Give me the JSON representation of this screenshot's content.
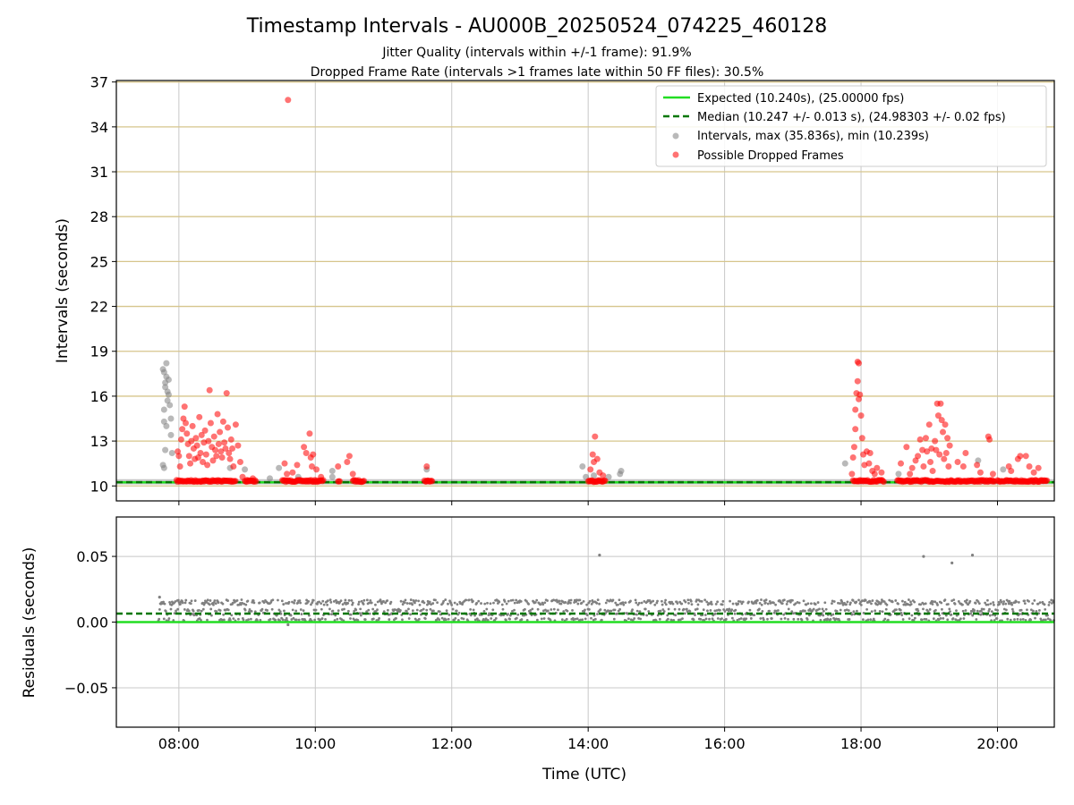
{
  "chart_data": [
    {
      "type": "scatter",
      "title": "Timestamp Intervals - AU000B_20250524_074225_460128",
      "subtitle_lines": [
        "Jitter Quality (intervals within +/-1 frame): 91.9%",
        "Dropped Frame Rate (intervals >1 frames late within 50 FF files): 30.5%"
      ],
      "ylabel": "Intervals (seconds)",
      "ylim": [
        9.0,
        37.1
      ],
      "yticks": [
        10,
        13,
        16,
        19,
        22,
        25,
        28,
        31,
        34,
        37
      ],
      "xlim": [
        "07:05",
        "20:50"
      ],
      "xticks": [
        "08:00",
        "10:00",
        "12:00",
        "14:00",
        "16:00",
        "18:00",
        "20:00"
      ],
      "legend_position": "top-right",
      "grid": true,
      "reference_lines": [
        {
          "name": "Expected (10.240s), (25.00000 fps)",
          "y": 10.24,
          "style": "solid",
          "color": "#22dd22"
        },
        {
          "name": "Median (10.247 +/- 0.013 s), (24.98303 +/- 0.02 fps)",
          "y": 10.247,
          "style": "dashed",
          "color": "#007700"
        }
      ],
      "series": [
        {
          "name": "Intervals, max (35.836s), min (10.239s)",
          "color": "#808080",
          "points": [
            [
              "07:46",
              17.8
            ],
            [
              "07:47",
              17.6
            ],
            [
              "07:48",
              16.6
            ],
            [
              "07:48",
              16.9
            ],
            [
              "07:49",
              18.2
            ],
            [
              "07:49",
              17.3
            ],
            [
              "07:50",
              16.3
            ],
            [
              "07:51",
              17.1
            ],
            [
              "07:47",
              15.1
            ],
            [
              "07:47",
              14.3
            ],
            [
              "07:49",
              14.0
            ],
            [
              "07:50",
              15.7
            ],
            [
              "07:51",
              16.1
            ],
            [
              "07:52",
              15.4
            ],
            [
              "07:53",
              13.4
            ],
            [
              "07:53",
              14.5
            ],
            [
              "07:54",
              12.2
            ],
            [
              "07:46",
              11.4
            ],
            [
              "07:47",
              11.2
            ],
            [
              "07:48",
              12.4
            ],
            [
              "08:45",
              11.2
            ],
            [
              "08:58",
              11.1
            ],
            [
              "09:20",
              10.5
            ],
            [
              "09:28",
              11.2
            ],
            [
              "09:45",
              10.6
            ],
            [
              "10:15",
              11.0
            ],
            [
              "10:15",
              10.6
            ],
            [
              "11:38",
              11.1
            ],
            [
              "13:55",
              11.3
            ],
            [
              "13:58",
              10.6
            ],
            [
              "14:05",
              10.7
            ],
            [
              "14:18",
              10.6
            ],
            [
              "14:28",
              10.8
            ],
            [
              "14:29",
              11.0
            ],
            [
              "17:46",
              11.5
            ],
            [
              "18:33",
              10.8
            ],
            [
              "19:43",
              11.7
            ],
            [
              "20:05",
              11.1
            ]
          ]
        },
        {
          "name": "Possible Dropped Frames",
          "color": "#ff0000",
          "points": [
            [
              "07:59",
              12.3
            ],
            [
              "08:00",
              12.0
            ],
            [
              "08:01",
              11.3
            ],
            [
              "08:02",
              13.1
            ],
            [
              "08:03",
              13.8
            ],
            [
              "08:04",
              14.5
            ],
            [
              "08:05",
              15.3
            ],
            [
              "08:06",
              14.2
            ],
            [
              "08:07",
              13.5
            ],
            [
              "08:08",
              12.8
            ],
            [
              "08:09",
              12.0
            ],
            [
              "08:10",
              11.5
            ],
            [
              "08:11",
              13.0
            ],
            [
              "08:12",
              14.0
            ],
            [
              "08:13",
              12.5
            ],
            [
              "08:14",
              11.8
            ],
            [
              "08:15",
              13.2
            ],
            [
              "08:16",
              12.7
            ],
            [
              "08:17",
              11.9
            ],
            [
              "08:18",
              14.6
            ],
            [
              "08:19",
              12.2
            ],
            [
              "08:20",
              13.4
            ],
            [
              "08:21",
              11.6
            ],
            [
              "08:22",
              12.9
            ],
            [
              "08:23",
              13.7
            ],
            [
              "08:24",
              12.1
            ],
            [
              "08:25",
              11.4
            ],
            [
              "08:26",
              13.0
            ],
            [
              "08:27",
              16.4
            ],
            [
              "08:28",
              14.2
            ],
            [
              "08:29",
              12.6
            ],
            [
              "08:30",
              11.7
            ],
            [
              "08:31",
              13.3
            ],
            [
              "08:32",
              12.4
            ],
            [
              "08:33",
              12.0
            ],
            [
              "08:34",
              14.8
            ],
            [
              "08:35",
              12.8
            ],
            [
              "08:36",
              13.6
            ],
            [
              "08:37",
              12.3
            ],
            [
              "08:38",
              11.9
            ],
            [
              "08:39",
              14.3
            ],
            [
              "08:40",
              12.9
            ],
            [
              "08:41",
              12.5
            ],
            [
              "08:42",
              16.2
            ],
            [
              "08:43",
              13.9
            ],
            [
              "08:44",
              12.2
            ],
            [
              "08:45",
              11.8
            ],
            [
              "08:46",
              13.1
            ],
            [
              "08:47",
              12.5
            ],
            [
              "08:48",
              11.3
            ],
            [
              "08:50",
              14.1
            ],
            [
              "08:52",
              12.7
            ],
            [
              "08:54",
              11.6
            ],
            [
              "08:56",
              10.6
            ],
            [
              "09:00",
              10.4
            ],
            [
              "09:05",
              10.5
            ],
            [
              "09:33",
              11.5
            ],
            [
              "09:35",
              10.8
            ],
            [
              "09:40",
              10.9
            ],
            [
              "09:44",
              11.4
            ],
            [
              "09:50",
              12.6
            ],
            [
              "09:52",
              12.2
            ],
            [
              "09:55",
              13.5
            ],
            [
              "09:56",
              11.9
            ],
            [
              "09:57",
              11.3
            ],
            [
              "09:58",
              12.1
            ],
            [
              "10:01",
              11.1
            ],
            [
              "10:05",
              10.6
            ],
            [
              "10:20",
              11.3
            ],
            [
              "10:28",
              11.6
            ],
            [
              "10:30",
              12.0
            ],
            [
              "10:33",
              10.8
            ],
            [
              "11:38",
              11.3
            ],
            [
              "14:02",
              11.1
            ],
            [
              "14:04",
              12.1
            ],
            [
              "14:05",
              11.6
            ],
            [
              "14:06",
              13.3
            ],
            [
              "14:08",
              11.8
            ],
            [
              "14:10",
              10.9
            ],
            [
              "14:13",
              10.7
            ],
            [
              "17:52",
              10.8
            ],
            [
              "17:53",
              11.9
            ],
            [
              "17:54",
              12.6
            ],
            [
              "17:55",
              13.8
            ],
            [
              "17:55",
              15.1
            ],
            [
              "17:56",
              16.2
            ],
            [
              "17:57",
              17.0
            ],
            [
              "17:57",
              18.3
            ],
            [
              "17:58",
              18.2
            ],
            [
              "17:58",
              15.8
            ],
            [
              "17:59",
              16.1
            ],
            [
              "18:00",
              14.7
            ],
            [
              "18:01",
              13.2
            ],
            [
              "18:02",
              12.1
            ],
            [
              "18:03",
              11.4
            ],
            [
              "18:05",
              12.3
            ],
            [
              "18:07",
              11.5
            ],
            [
              "18:08",
              12.2
            ],
            [
              "18:10",
              11.0
            ],
            [
              "18:12",
              10.8
            ],
            [
              "18:14",
              11.2
            ],
            [
              "18:18",
              10.9
            ],
            [
              "18:35",
              11.5
            ],
            [
              "18:40",
              12.6
            ],
            [
              "18:43",
              10.8
            ],
            [
              "18:45",
              11.2
            ],
            [
              "18:48",
              11.7
            ],
            [
              "18:50",
              12.0
            ],
            [
              "18:52",
              13.1
            ],
            [
              "18:54",
              12.4
            ],
            [
              "18:55",
              11.3
            ],
            [
              "18:57",
              13.2
            ],
            [
              "18:58",
              12.3
            ],
            [
              "19:00",
              14.1
            ],
            [
              "19:01",
              11.6
            ],
            [
              "19:02",
              12.5
            ],
            [
              "19:03",
              11.0
            ],
            [
              "19:05",
              13.0
            ],
            [
              "19:06",
              12.4
            ],
            [
              "19:07",
              15.5
            ],
            [
              "19:08",
              14.7
            ],
            [
              "19:09",
              12.1
            ],
            [
              "19:10",
              15.5
            ],
            [
              "19:11",
              14.4
            ],
            [
              "19:12",
              13.6
            ],
            [
              "19:13",
              11.8
            ],
            [
              "19:14",
              14.1
            ],
            [
              "19:15",
              12.2
            ],
            [
              "19:16",
              13.2
            ],
            [
              "19:17",
              11.3
            ],
            [
              "19:18",
              12.7
            ],
            [
              "19:25",
              11.6
            ],
            [
              "19:30",
              11.3
            ],
            [
              "19:32",
              12.2
            ],
            [
              "19:42",
              11.4
            ],
            [
              "19:45",
              10.9
            ],
            [
              "19:52",
              13.3
            ],
            [
              "19:53",
              13.1
            ],
            [
              "19:56",
              10.8
            ],
            [
              "20:10",
              11.3
            ],
            [
              "20:12",
              11.0
            ],
            [
              "20:18",
              11.8
            ],
            [
              "20:20",
              12.0
            ],
            [
              "20:25",
              12.0
            ],
            [
              "20:28",
              11.3
            ],
            [
              "20:32",
              10.9
            ],
            [
              "20:36",
              11.2
            ],
            [
              "09:36",
              35.8
            ]
          ],
          "baseline_clusters": [
            [
              "07:58",
              "08:50",
              10.33
            ],
            [
              "08:58",
              "09:08",
              10.33
            ],
            [
              "09:31",
              "10:07",
              10.33
            ],
            [
              "10:20",
              "10:22",
              10.33
            ],
            [
              "10:33",
              "10:43",
              10.33
            ],
            [
              "11:36",
              "11:43",
              10.33
            ],
            [
              "14:00",
              "14:15",
              10.33
            ],
            [
              "17:53",
              "18:20",
              10.33
            ],
            [
              "18:32",
              "19:58",
              10.33
            ],
            [
              "20:00",
              "20:44",
              10.33
            ]
          ]
        }
      ]
    },
    {
      "type": "scatter",
      "ylabel": "Residuals (seconds)",
      "xlabel": "Time (UTC)",
      "ylim": [
        -0.08,
        0.08
      ],
      "yticks": [
        "−0.05",
        "0.00",
        "0.05"
      ],
      "ytick_values": [
        -0.05,
        0.0,
        0.05
      ],
      "xlim": [
        "07:05",
        "20:50"
      ],
      "xticks": [
        "08:00",
        "10:00",
        "12:00",
        "14:00",
        "16:00",
        "18:00",
        "20:00"
      ],
      "grid": true,
      "reference_lines": [
        {
          "y": 0.0,
          "style": "solid",
          "color": "#22dd22"
        },
        {
          "y": 0.0065,
          "style": "dashed",
          "color": "#007700"
        }
      ],
      "residual_band": {
        "from": "07:42",
        "to": "20:50",
        "values": [
          0.002,
          0.006,
          0.009,
          0.014,
          0.016
        ],
        "color": "#808080"
      },
      "outliers": [
        [
          "07:43",
          0.019
        ],
        [
          "09:36",
          -0.002
        ],
        [
          "14:10",
          0.051
        ],
        [
          "18:55",
          0.05
        ],
        [
          "19:20",
          0.045
        ],
        [
          "19:38",
          0.051
        ]
      ]
    }
  ]
}
